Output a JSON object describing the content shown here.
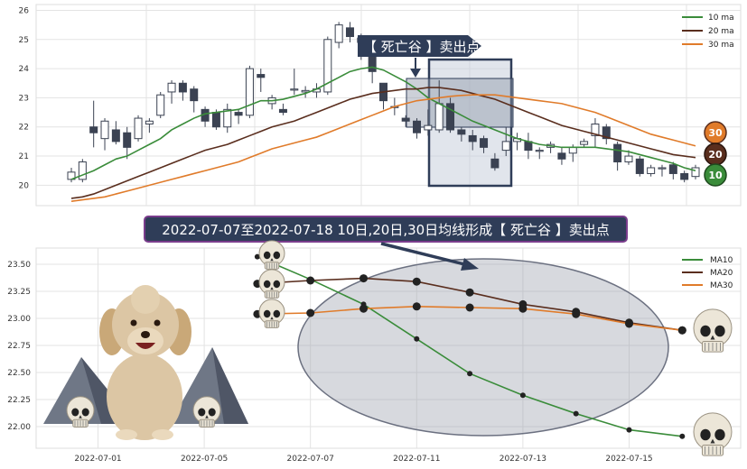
{
  "chart_data": [
    {
      "type": "candlestick",
      "ylim": [
        19.3,
        26.2
      ],
      "yticks": [
        "20",
        "21",
        "22",
        "23",
        "24",
        "25",
        "26"
      ],
      "grid": true,
      "legend_position": "top-right",
      "legend": [
        "10 ma",
        "20 ma",
        "30 ma"
      ],
      "annotation": "【 死亡谷 】卖出点",
      "badges": [
        "30",
        "20",
        "10"
      ],
      "candles": [
        [
          20.2,
          20.45,
          20.1,
          20.6
        ],
        [
          20.2,
          20.8,
          20.1,
          20.9
        ],
        [
          22.0,
          21.8,
          21.3,
          22.9
        ],
        [
          21.6,
          22.2,
          21.2,
          22.3
        ],
        [
          21.9,
          21.5,
          21.4,
          22.2
        ],
        [
          21.8,
          21.3,
          20.9,
          22.0
        ],
        [
          21.6,
          22.3,
          21.5,
          22.4
        ],
        [
          22.1,
          22.2,
          21.8,
          22.3
        ],
        [
          22.4,
          23.1,
          22.3,
          23.2
        ],
        [
          23.2,
          23.5,
          22.8,
          23.6
        ],
        [
          23.5,
          23.2,
          22.9,
          23.6
        ],
        [
          23.3,
          22.9,
          22.5,
          23.4
        ],
        [
          22.6,
          22.2,
          22.0,
          22.7
        ],
        [
          22.5,
          22.0,
          21.9,
          22.6
        ],
        [
          22.0,
          22.6,
          21.8,
          22.8
        ],
        [
          22.5,
          22.4,
          22.1,
          22.6
        ],
        [
          22.4,
          24.0,
          22.3,
          24.1
        ],
        [
          23.8,
          23.7,
          23.2,
          24.0
        ],
        [
          22.8,
          23.0,
          22.6,
          23.1
        ],
        [
          22.6,
          22.5,
          22.4,
          22.8
        ],
        [
          23.3,
          23.3,
          23.1,
          24.0
        ],
        [
          23.2,
          23.25,
          23.0,
          23.4
        ],
        [
          23.2,
          23.3,
          23.0,
          23.5
        ],
        [
          23.2,
          25.0,
          23.1,
          25.1
        ],
        [
          24.9,
          25.5,
          24.7,
          25.6
        ],
        [
          25.4,
          25.1,
          24.9,
          25.6
        ],
        [
          24.9,
          25.05,
          24.3,
          25.2
        ],
        [
          24.8,
          23.9,
          23.5,
          24.9
        ],
        [
          23.5,
          22.9,
          22.6,
          23.5
        ],
        [
          22.7,
          22.7,
          22.4,
          23.0
        ],
        [
          22.3,
          22.2,
          22.0,
          22.4
        ],
        [
          22.2,
          21.8,
          21.6,
          22.3
        ],
        [
          21.9,
          22.05,
          21.7,
          22.6
        ],
        [
          21.9,
          22.8,
          21.8,
          23.6
        ],
        [
          22.8,
          21.9,
          21.8,
          23.0
        ],
        [
          21.9,
          21.75,
          21.5,
          22.0
        ],
        [
          21.7,
          21.5,
          21.2,
          21.9
        ],
        [
          21.6,
          21.3,
          21.1,
          21.7
        ],
        [
          20.9,
          20.6,
          20.5,
          21.1
        ],
        [
          21.2,
          21.5,
          21.0,
          22.0
        ],
        [
          21.5,
          21.6,
          21.2,
          21.8
        ],
        [
          21.5,
          21.2,
          20.9,
          21.8
        ],
        [
          21.2,
          21.2,
          20.9,
          21.3
        ],
        [
          21.3,
          21.4,
          21.1,
          21.5
        ],
        [
          21.1,
          20.9,
          20.7,
          21.3
        ],
        [
          21.1,
          21.3,
          20.8,
          21.4
        ],
        [
          21.4,
          21.5,
          21.3,
          21.6
        ],
        [
          21.7,
          22.1,
          21.3,
          22.3
        ],
        [
          22.0,
          21.6,
          21.4,
          22.1
        ],
        [
          21.4,
          20.8,
          20.5,
          21.5
        ],
        [
          20.8,
          21.0,
          20.7,
          21.2
        ],
        [
          20.9,
          20.4,
          20.3,
          21.0
        ],
        [
          20.4,
          20.6,
          20.3,
          20.7
        ],
        [
          20.6,
          20.6,
          20.3,
          20.7
        ],
        [
          20.7,
          20.4,
          20.2,
          20.8
        ],
        [
          20.4,
          20.2,
          20.1,
          20.5
        ],
        [
          20.3,
          20.6,
          20.2,
          20.7
        ]
      ],
      "series": [
        {
          "name": "10 ma",
          "color": "#3a8c3a",
          "values": [
            20.2,
            20.35,
            20.5,
            20.7,
            20.9,
            21.0,
            21.2,
            21.4,
            21.6,
            21.9,
            22.1,
            22.3,
            22.45,
            22.5,
            22.55,
            22.6,
            22.75,
            22.9,
            22.9,
            22.95,
            23.05,
            23.15,
            23.3,
            23.5,
            23.7,
            23.9,
            24.0,
            24.05,
            23.95,
            23.75,
            23.55,
            23.3,
            23.0,
            22.8,
            22.6,
            22.4,
            22.2,
            22.05,
            21.9,
            21.75,
            21.6,
            21.5,
            21.4,
            21.35,
            21.3,
            21.3,
            21.3,
            21.3,
            21.25,
            21.2,
            21.15,
            21.05,
            20.95,
            20.85,
            20.75,
            20.6,
            20.5
          ]
        },
        {
          "name": "20 ma",
          "color": "#5a2e1e",
          "values": [
            19.55,
            19.6,
            19.7,
            19.85,
            20.0,
            20.15,
            20.3,
            20.45,
            20.6,
            20.75,
            20.9,
            21.05,
            21.2,
            21.3,
            21.4,
            21.55,
            21.7,
            21.85,
            22.0,
            22.1,
            22.2,
            22.35,
            22.5,
            22.65,
            22.8,
            22.95,
            23.05,
            23.15,
            23.2,
            23.25,
            23.3,
            23.3,
            23.35,
            23.35,
            23.3,
            23.25,
            23.15,
            23.05,
            22.95,
            22.8,
            22.65,
            22.5,
            22.35,
            22.2,
            22.05,
            21.95,
            21.85,
            21.75,
            21.65,
            21.55,
            21.45,
            21.35,
            21.25,
            21.15,
            21.05,
            21.0,
            20.95
          ]
        },
        {
          "name": "30 ma",
          "color": "#e07b2a",
          "values": [
            19.45,
            19.5,
            19.55,
            19.6,
            19.7,
            19.8,
            19.9,
            20.0,
            20.1,
            20.2,
            20.3,
            20.4,
            20.5,
            20.6,
            20.7,
            20.8,
            20.95,
            21.1,
            21.25,
            21.35,
            21.45,
            21.55,
            21.65,
            21.8,
            21.95,
            22.1,
            22.25,
            22.4,
            22.55,
            22.7,
            22.8,
            22.9,
            22.95,
            23.0,
            23.05,
            23.08,
            23.1,
            23.1,
            23.1,
            23.05,
            23.0,
            22.95,
            22.9,
            22.85,
            22.8,
            22.7,
            22.6,
            22.5,
            22.35,
            22.2,
            22.05,
            21.9,
            21.75,
            21.65,
            21.55,
            21.45,
            21.35
          ]
        }
      ]
    },
    {
      "type": "line",
      "title": "2022-07-07至2022-07-18 10日,20日,30日均线形成【 死亡谷 】卖出点",
      "x": [
        "2022-07-06",
        "2022-07-07",
        "2022-07-08",
        "2022-07-11",
        "2022-07-12",
        "2022-07-13",
        "2022-07-14",
        "2022-07-15",
        "2022-07-18"
      ],
      "xticks": [
        "2022-07-01",
        "2022-07-05",
        "2022-07-07",
        "2022-07-11",
        "2022-07-13",
        "2022-07-15"
      ],
      "ylim": [
        21.8,
        23.65
      ],
      "yticks": [
        "22.00",
        "22.25",
        "22.50",
        "22.75",
        "23.00",
        "23.25",
        "23.50"
      ],
      "grid": true,
      "legend_position": "top-right",
      "series": [
        {
          "name": "MA10",
          "color": "#3a8c3a",
          "values": [
            23.57,
            23.36,
            23.13,
            22.81,
            22.49,
            22.29,
            22.12,
            21.97,
            21.91
          ]
        },
        {
          "name": "MA20",
          "color": "#5a2e1e",
          "values": [
            23.32,
            23.35,
            23.37,
            23.34,
            23.24,
            23.13,
            23.06,
            22.96,
            22.89
          ]
        },
        {
          "name": "MA30",
          "color": "#e07b2a",
          "values": [
            23.04,
            23.05,
            23.09,
            23.11,
            23.1,
            23.09,
            23.04,
            22.95,
            22.89
          ]
        }
      ]
    }
  ]
}
